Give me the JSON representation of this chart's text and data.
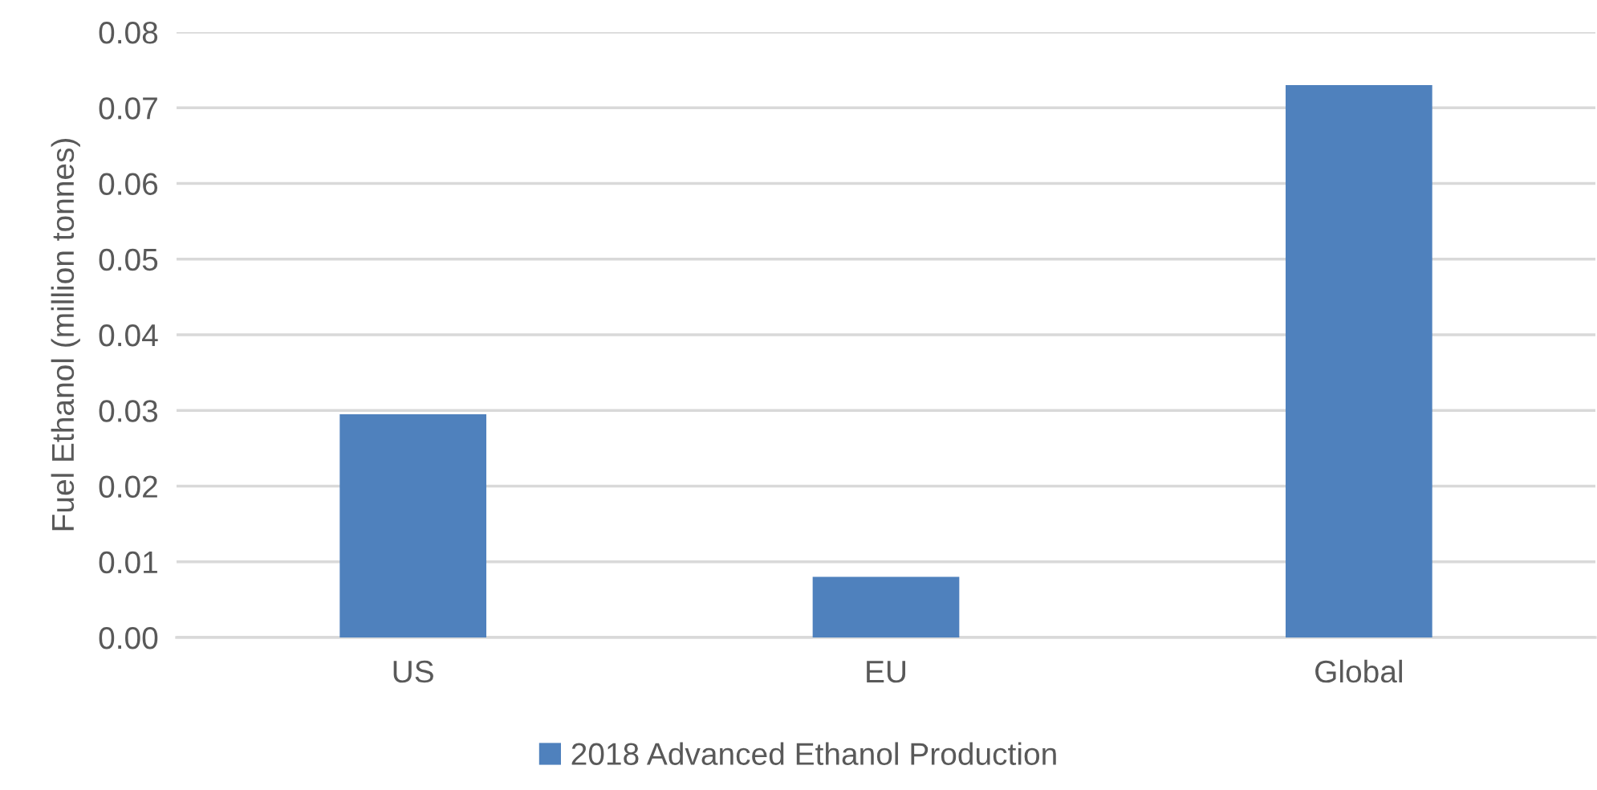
{
  "chart_data": {
    "type": "bar",
    "ylabel": "Fuel Ethanol (million tonnes)",
    "categories": [
      "US",
      "EU",
      "Global"
    ],
    "series": [
      {
        "name": "2018 Advanced Ethanol Production",
        "color": "#4f81bd",
        "values": [
          0.0295,
          0.008,
          0.073
        ]
      }
    ],
    "ylim": [
      0,
      0.08
    ],
    "yticks": [
      {
        "value": 0,
        "label": "0.00"
      },
      0.01,
      0.02,
      0.03,
      0.04,
      0.05,
      0.06,
      0.07,
      0.08
    ],
    "grid": "y",
    "legend": "bottom"
  }
}
